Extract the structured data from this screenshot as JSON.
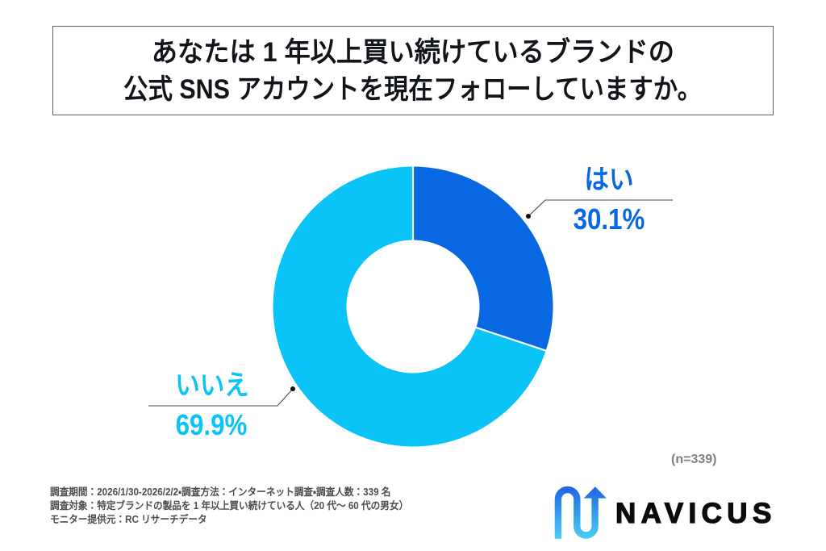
{
  "title": {
    "line1": "あなたは 1 年以上買い続けているブランドの",
    "line2": "公式 SNS アカウントを現在フォローしていますか。"
  },
  "chart_data": {
    "type": "pie",
    "subtype": "donut",
    "categories": [
      "はい",
      "いいえ"
    ],
    "values": [
      30.1,
      69.9
    ],
    "unit": "%",
    "colors": [
      "#0768e2",
      "#0ac4f7"
    ],
    "start_angle_deg": 0,
    "direction": "clockwise",
    "sample_note": "(n=339)"
  },
  "callouts": [
    {
      "label": "はい",
      "value": "30.1%",
      "color": "#0768e2"
    },
    {
      "label": "いいえ",
      "value": "69.9%",
      "color": "#0ac4f7"
    }
  ],
  "footnote": {
    "line1": "調査期間：2026/1/30-2026/2/2・調査方法：インターネット調査・調査人数：339 名",
    "line2": "調査対象：特定ブランドの製品を 1 年以上買い続けている人（20 代〜 60 代の男女）",
    "line3": "モニター提供元：RC リサーチデータ"
  },
  "logo": {
    "text": "NAVICUS"
  }
}
